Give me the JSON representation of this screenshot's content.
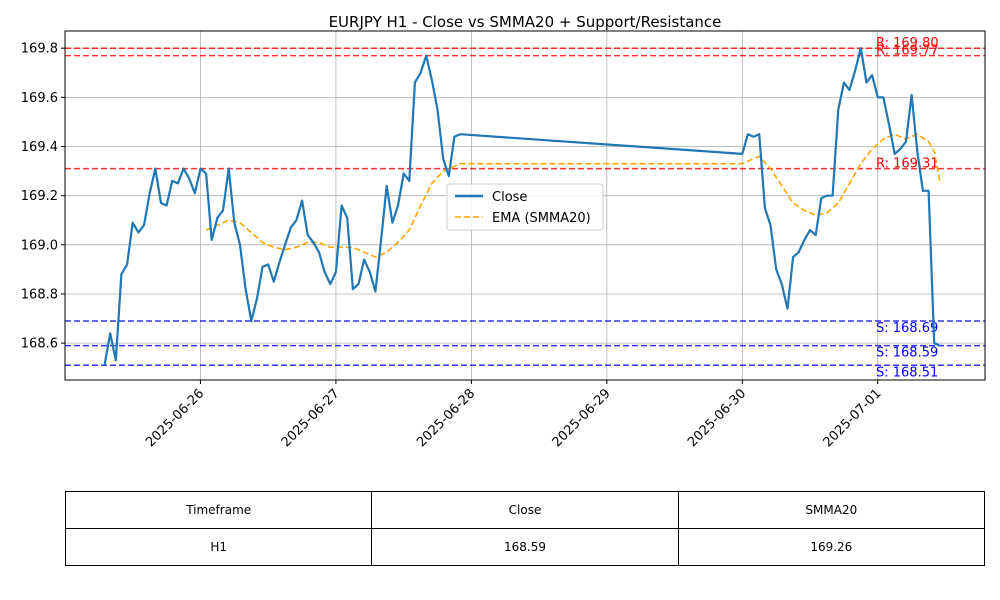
{
  "chart_data": {
    "type": "line",
    "title": "EURJPY H1 - Close vs SMMA20 + Support/Resistance",
    "xlabel": "",
    "ylabel": "",
    "x_ticks": [
      "2025-06-26",
      "2025-06-27",
      "2025-06-28",
      "2025-06-29",
      "2025-06-30",
      "2025-07-01"
    ],
    "x_range": [
      "2025-06-25 00:00",
      "2025-07-01 19:00"
    ],
    "y_range": [
      168.45,
      169.87
    ],
    "y_ticks": [
      168.6,
      168.8,
      169.0,
      169.2,
      169.4,
      169.6,
      169.8
    ],
    "grid": true,
    "legend_position": "center-right",
    "series": [
      {
        "name": "Close",
        "color": "#1f77b4",
        "style": "solid",
        "points": [
          [
            "2025-06-25 07:00",
            168.51
          ],
          [
            "2025-06-25 08:00",
            168.64
          ],
          [
            "2025-06-25 09:00",
            168.53
          ],
          [
            "2025-06-25 10:00",
            168.88
          ],
          [
            "2025-06-25 11:00",
            168.92
          ],
          [
            "2025-06-25 12:00",
            169.09
          ],
          [
            "2025-06-25 13:00",
            169.05
          ],
          [
            "2025-06-25 14:00",
            169.08
          ],
          [
            "2025-06-25 15:00",
            169.21
          ],
          [
            "2025-06-25 16:00",
            169.31
          ],
          [
            "2025-06-25 17:00",
            169.17
          ],
          [
            "2025-06-25 18:00",
            169.16
          ],
          [
            "2025-06-25 19:00",
            169.26
          ],
          [
            "2025-06-25 20:00",
            169.25
          ],
          [
            "2025-06-25 21:00",
            169.31
          ],
          [
            "2025-06-25 22:00",
            169.27
          ],
          [
            "2025-06-25 23:00",
            169.21
          ],
          [
            "2025-06-26 00:00",
            169.31
          ],
          [
            "2025-06-26 01:00",
            169.29
          ],
          [
            "2025-06-26 02:00",
            169.02
          ],
          [
            "2025-06-26 03:00",
            169.11
          ],
          [
            "2025-06-26 04:00",
            169.14
          ],
          [
            "2025-06-26 05:00",
            169.31
          ],
          [
            "2025-06-26 06:00",
            169.09
          ],
          [
            "2025-06-26 07:00",
            169.0
          ],
          [
            "2025-06-26 08:00",
            168.82
          ],
          [
            "2025-06-26 09:00",
            168.69
          ],
          [
            "2025-06-26 10:00",
            168.78
          ],
          [
            "2025-06-26 11:00",
            168.91
          ],
          [
            "2025-06-26 12:00",
            168.92
          ],
          [
            "2025-06-26 13:00",
            168.85
          ],
          [
            "2025-06-26 14:00",
            168.93
          ],
          [
            "2025-06-26 15:00",
            169.0
          ],
          [
            "2025-06-26 16:00",
            169.07
          ],
          [
            "2025-06-26 17:00",
            169.1
          ],
          [
            "2025-06-26 18:00",
            169.18
          ],
          [
            "2025-06-26 19:00",
            169.04
          ],
          [
            "2025-06-26 20:00",
            169.01
          ],
          [
            "2025-06-26 21:00",
            168.97
          ],
          [
            "2025-06-26 22:00",
            168.89
          ],
          [
            "2025-06-26 23:00",
            168.84
          ],
          [
            "2025-06-27 00:00",
            168.89
          ],
          [
            "2025-06-27 01:00",
            169.16
          ],
          [
            "2025-06-27 02:00",
            169.11
          ],
          [
            "2025-06-27 03:00",
            168.82
          ],
          [
            "2025-06-27 04:00",
            168.84
          ],
          [
            "2025-06-27 05:00",
            168.94
          ],
          [
            "2025-06-27 06:00",
            168.89
          ],
          [
            "2025-06-27 07:00",
            168.81
          ],
          [
            "2025-06-27 08:00",
            169.02
          ],
          [
            "2025-06-27 09:00",
            169.24
          ],
          [
            "2025-06-27 10:00",
            169.09
          ],
          [
            "2025-06-27 11:00",
            169.16
          ],
          [
            "2025-06-27 12:00",
            169.29
          ],
          [
            "2025-06-27 13:00",
            169.26
          ],
          [
            "2025-06-27 14:00",
            169.66
          ],
          [
            "2025-06-27 15:00",
            169.7
          ],
          [
            "2025-06-27 16:00",
            169.77
          ],
          [
            "2025-06-27 17:00",
            169.67
          ],
          [
            "2025-06-27 18:00",
            169.55
          ],
          [
            "2025-06-27 19:00",
            169.35
          ],
          [
            "2025-06-27 20:00",
            169.28
          ],
          [
            "2025-06-27 21:00",
            169.44
          ],
          [
            "2025-06-27 22:00",
            169.45
          ],
          [
            "2025-06-30 00:00",
            169.37
          ],
          [
            "2025-06-30 01:00",
            169.45
          ],
          [
            "2025-06-30 02:00",
            169.44
          ],
          [
            "2025-06-30 03:00",
            169.45
          ],
          [
            "2025-06-30 04:00",
            169.15
          ],
          [
            "2025-06-30 05:00",
            169.08
          ],
          [
            "2025-06-30 06:00",
            168.9
          ],
          [
            "2025-06-30 07:00",
            168.84
          ],
          [
            "2025-06-30 08:00",
            168.74
          ],
          [
            "2025-06-30 09:00",
            168.95
          ],
          [
            "2025-06-30 10:00",
            168.97
          ],
          [
            "2025-06-30 11:00",
            169.02
          ],
          [
            "2025-06-30 12:00",
            169.06
          ],
          [
            "2025-06-30 13:00",
            169.04
          ],
          [
            "2025-06-30 14:00",
            169.19
          ],
          [
            "2025-06-30 15:00",
            169.2
          ],
          [
            "2025-06-30 16:00",
            169.2
          ],
          [
            "2025-06-30 17:00",
            169.55
          ],
          [
            "2025-06-30 18:00",
            169.66
          ],
          [
            "2025-06-30 19:00",
            169.63
          ],
          [
            "2025-06-30 20:00",
            169.71
          ],
          [
            "2025-06-30 21:00",
            169.8
          ],
          [
            "2025-06-30 22:00",
            169.66
          ],
          [
            "2025-06-30 23:00",
            169.69
          ],
          [
            "2025-07-01 00:00",
            169.6
          ],
          [
            "2025-07-01 01:00",
            169.6
          ],
          [
            "2025-07-01 02:00",
            169.49
          ],
          [
            "2025-07-01 03:00",
            169.37
          ],
          [
            "2025-07-01 04:00",
            169.39
          ],
          [
            "2025-07-01 05:00",
            169.42
          ],
          [
            "2025-07-01 06:00",
            169.61
          ],
          [
            "2025-07-01 07:00",
            169.38
          ],
          [
            "2025-07-01 08:00",
            169.22
          ],
          [
            "2025-07-01 09:00",
            169.22
          ],
          [
            "2025-07-01 10:00",
            168.6
          ],
          [
            "2025-07-01 11:00",
            168.59
          ]
        ]
      },
      {
        "name": "EMA (SMMA20)",
        "color": "#ffa500",
        "style": "dashed",
        "points": [
          [
            "2025-06-26 01:00",
            169.06
          ],
          [
            "2025-06-26 03:00",
            169.08
          ],
          [
            "2025-06-26 05:00",
            169.1
          ],
          [
            "2025-06-26 07:00",
            169.09
          ],
          [
            "2025-06-26 09:00",
            169.05
          ],
          [
            "2025-06-26 11:00",
            169.01
          ],
          [
            "2025-06-26 13:00",
            168.99
          ],
          [
            "2025-06-26 15:00",
            168.98
          ],
          [
            "2025-06-26 17:00",
            168.99
          ],
          [
            "2025-06-26 19:00",
            169.01
          ],
          [
            "2025-06-26 21:00",
            169.01
          ],
          [
            "2025-06-26 23:00",
            168.99
          ],
          [
            "2025-06-27 01:00",
            168.99
          ],
          [
            "2025-06-27 03:00",
            168.99
          ],
          [
            "2025-06-27 05:00",
            168.97
          ],
          [
            "2025-06-27 07:00",
            168.95
          ],
          [
            "2025-06-27 09:00",
            168.97
          ],
          [
            "2025-06-27 11:00",
            169.01
          ],
          [
            "2025-06-27 13:00",
            169.06
          ],
          [
            "2025-06-27 15:00",
            169.16
          ],
          [
            "2025-06-27 17:00",
            169.25
          ],
          [
            "2025-06-27 19:00",
            169.3
          ],
          [
            "2025-06-27 21:00",
            169.32
          ],
          [
            "2025-06-27 22:00",
            169.33
          ],
          [
            "2025-06-30 00:00",
            169.33
          ],
          [
            "2025-06-30 02:00",
            169.35
          ],
          [
            "2025-06-30 03:00",
            169.36
          ],
          [
            "2025-06-30 05:00",
            169.31
          ],
          [
            "2025-06-30 07:00",
            169.24
          ],
          [
            "2025-06-30 09:00",
            169.17
          ],
          [
            "2025-06-30 11:00",
            169.14
          ],
          [
            "2025-06-30 13:00",
            169.12
          ],
          [
            "2025-06-30 15:00",
            169.13
          ],
          [
            "2025-06-30 17:00",
            169.17
          ],
          [
            "2025-06-30 19:00",
            169.25
          ],
          [
            "2025-06-30 21:00",
            169.33
          ],
          [
            "2025-06-30 23:00",
            169.39
          ],
          [
            "2025-07-01 01:00",
            169.43
          ],
          [
            "2025-07-01 03:00",
            169.45
          ],
          [
            "2025-07-01 05:00",
            169.43
          ],
          [
            "2025-07-01 07:00",
            169.45
          ],
          [
            "2025-07-01 09:00",
            169.42
          ],
          [
            "2025-07-01 10:00",
            169.38
          ],
          [
            "2025-07-01 11:00",
            169.26
          ]
        ]
      }
    ],
    "hlines": [
      {
        "label": "R: 169.80",
        "value": 169.8,
        "kind": "resistance",
        "color": "#ff0000"
      },
      {
        "label": "R: 169.77",
        "value": 169.77,
        "kind": "resistance",
        "color": "#ff0000"
      },
      {
        "label": "R: 169.31",
        "value": 169.31,
        "kind": "resistance",
        "color": "#ff0000"
      },
      {
        "label": "S: 168.69",
        "value": 168.69,
        "kind": "support",
        "color": "#0000ff"
      },
      {
        "label": "S: 168.59",
        "value": 168.59,
        "kind": "support",
        "color": "#0000ff"
      },
      {
        "label": "S: 168.51",
        "value": 168.51,
        "kind": "support",
        "color": "#0000ff"
      }
    ]
  },
  "table": {
    "headers": [
      "Timeframe",
      "Close",
      "SMMA20"
    ],
    "row": [
      "H1",
      "168.59",
      "169.26"
    ]
  }
}
